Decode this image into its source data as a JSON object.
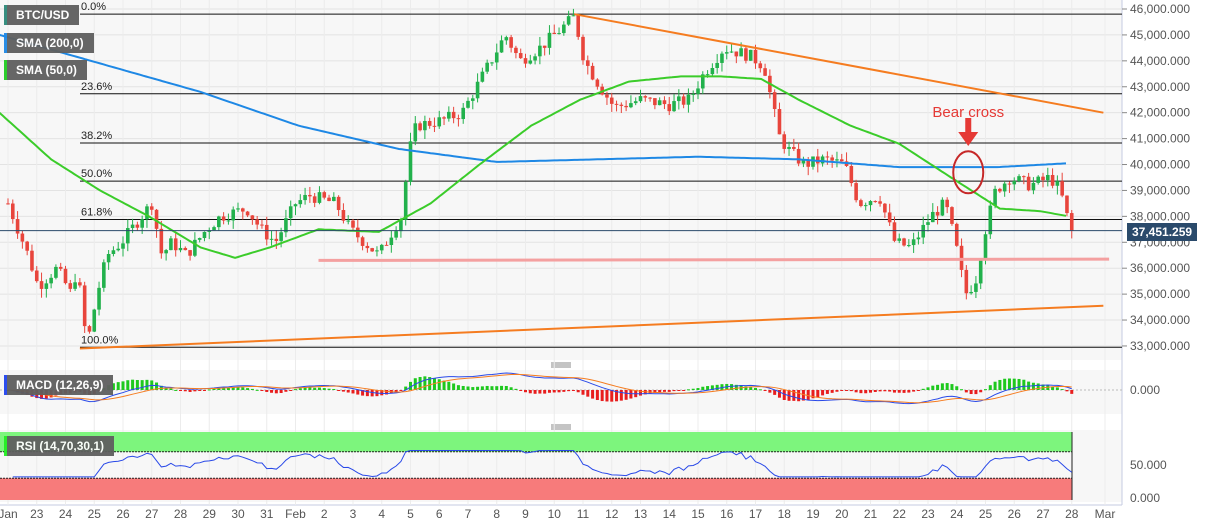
{
  "chart_data": {
    "type": "candlestick",
    "symbol": "BTC/USD",
    "indicators": {
      "sma200": "SMA (200,0)",
      "sma50": "SMA (50,0)",
      "macd": "MACD (12,26,9)",
      "rsi": "RSI (14,70,30,1)"
    },
    "last_price": "37,451.259",
    "ylim": [
      32600,
      46300
    ],
    "y_ticks": [
      "46,000.000",
      "45,000.000",
      "44,000.000",
      "43,000.000",
      "42,000.000",
      "41,000.000",
      "40,000.000",
      "39,000.000",
      "38,000.000",
      "37,000.000",
      "36,000.000",
      "35,000.000",
      "34,000.000",
      "33,000.000"
    ],
    "y_tick_values": [
      46000,
      45000,
      44000,
      43000,
      42000,
      41000,
      40000,
      39000,
      38000,
      37000,
      36000,
      35000,
      34000,
      33000
    ],
    "x_labels": [
      "Jan",
      "23",
      "24",
      "25",
      "26",
      "27",
      "28",
      "29",
      "30",
      "31",
      "Feb",
      "2",
      "3",
      "4",
      "5",
      "6",
      "7",
      "8",
      "9",
      "10",
      "11",
      "12",
      "13",
      "14",
      "15",
      "16",
      "17",
      "18",
      "19",
      "20",
      "21",
      "22",
      "23",
      "24",
      "25",
      "26",
      "27",
      "28",
      "Mar"
    ],
    "fib_levels": [
      {
        "label": "0.0%",
        "price": 45800
      },
      {
        "label": "23.6%",
        "price": 42730
      },
      {
        "label": "38.2%",
        "price": 40830
      },
      {
        "label": "50.0%",
        "price": 39360
      },
      {
        "label": "61.8%",
        "price": 37880
      },
      {
        "label": "100.0%",
        "price": 32950
      }
    ],
    "price_path_day_price": [
      [
        0,
        38500
      ],
      [
        0.7,
        36500
      ],
      [
        1.05,
        35300
      ],
      [
        1.7,
        36000
      ],
      [
        2.2,
        35000
      ],
      [
        2.4,
        36000
      ],
      [
        2.75,
        33000
      ],
      [
        3.1,
        35000
      ],
      [
        3.45,
        36500
      ],
      [
        3.95,
        37000
      ],
      [
        4.5,
        37800
      ],
      [
        5.0,
        38500
      ],
      [
        5.35,
        36500
      ],
      [
        5.7,
        37000
      ],
      [
        6.2,
        36500
      ],
      [
        6.9,
        37500
      ],
      [
        7.4,
        38000
      ],
      [
        8.3,
        38300
      ],
      [
        8.8,
        37500
      ],
      [
        9.3,
        37000
      ],
      [
        10.0,
        38500
      ],
      [
        10.5,
        38800
      ],
      [
        11.4,
        38500
      ],
      [
        11.9,
        37500
      ],
      [
        12.4,
        37000
      ],
      [
        12.9,
        36500
      ],
      [
        13.4,
        37500
      ],
      [
        13.7,
        38000
      ],
      [
        13.95,
        40500
      ],
      [
        14.2,
        41500
      ],
      [
        15.1,
        41700
      ],
      [
        15.8,
        42000
      ],
      [
        16.3,
        43000
      ],
      [
        16.8,
        44000
      ],
      [
        17.3,
        45000
      ],
      [
        17.8,
        44000
      ],
      [
        18.5,
        44500
      ],
      [
        19.5,
        45500
      ],
      [
        19.7,
        45700
      ],
      [
        20.05,
        44000
      ],
      [
        20.6,
        43000
      ],
      [
        21.1,
        42200
      ],
      [
        22.0,
        42500
      ],
      [
        23.0,
        42300
      ],
      [
        23.7,
        42500
      ],
      [
        24.2,
        43500
      ],
      [
        24.9,
        44500
      ],
      [
        25.8,
        44200
      ],
      [
        26.3,
        43800
      ],
      [
        26.55,
        42500
      ],
      [
        26.85,
        41000
      ],
      [
        27.2,
        40500
      ],
      [
        27.7,
        40000
      ],
      [
        28.4,
        40200
      ],
      [
        29.1,
        40000
      ],
      [
        29.6,
        38500
      ],
      [
        30.3,
        38800
      ],
      [
        30.85,
        37000
      ],
      [
        31.4,
        36800
      ],
      [
        32.1,
        38000
      ],
      [
        32.6,
        38500
      ],
      [
        32.95,
        37000
      ],
      [
        33.3,
        35000
      ],
      [
        33.65,
        35500
      ],
      [
        34.0,
        37500
      ],
      [
        34.35,
        39000
      ],
      [
        34.85,
        39500
      ],
      [
        35.55,
        39200
      ],
      [
        36.25,
        39500
      ],
      [
        36.6,
        39000
      ],
      [
        36.88,
        37800
      ],
      [
        37.0,
        37450
      ]
    ],
    "sma200_day_price": [
      [
        -0.3,
        45000
      ],
      [
        6.7,
        42800
      ],
      [
        10.1,
        41500
      ],
      [
        13.6,
        40600
      ],
      [
        17.0,
        40100
      ],
      [
        20.5,
        40200
      ],
      [
        24.0,
        40300
      ],
      [
        27.5,
        40200
      ],
      [
        31.0,
        39900
      ],
      [
        34.4,
        39900
      ],
      [
        36.9,
        40050
      ]
    ],
    "sma50_day_price": [
      [
        -0.3,
        42000
      ],
      [
        1.5,
        40200
      ],
      [
        3.2,
        39000
      ],
      [
        4.9,
        38000
      ],
      [
        6.7,
        36800
      ],
      [
        7.9,
        36400
      ],
      [
        9.1,
        36800
      ],
      [
        10.8,
        37500
      ],
      [
        12.9,
        37400
      ],
      [
        14.7,
        38500
      ],
      [
        16.4,
        40000
      ],
      [
        18.2,
        41500
      ],
      [
        19.9,
        42500
      ],
      [
        21.6,
        43200
      ],
      [
        23.4,
        43400
      ],
      [
        24.8,
        43400
      ],
      [
        26.2,
        43300
      ],
      [
        27.5,
        42500
      ],
      [
        29.3,
        41500
      ],
      [
        31.0,
        40800
      ],
      [
        32.8,
        39500
      ],
      [
        34.5,
        38300
      ],
      [
        35.9,
        38200
      ],
      [
        36.9,
        38000
      ]
    ],
    "trendlines": [
      {
        "name": "upper",
        "from": [
          19.7,
          45800
        ],
        "to": [
          38.1,
          42000
        ]
      },
      {
        "name": "lower",
        "from": [
          2.5,
          32900
        ],
        "to": [
          38.1,
          34550
        ]
      },
      {
        "name": "support",
        "from": [
          10.8,
          36300
        ],
        "to": [
          38.3,
          36350
        ]
      }
    ],
    "annotation": {
      "text": "Bear cross",
      "day": 33.4,
      "price": 39700
    },
    "macd_ticks": [
      "0.000"
    ],
    "rsi_ticks": [
      "50.000",
      "0.000"
    ],
    "rsi_levels": [
      70,
      30
    ]
  },
  "colors": {
    "up": "#22b14c",
    "down": "#e8453c",
    "sma200": "#1e88e5",
    "sma50": "#3bcc2a",
    "trend": "#f57c20",
    "support": "#f4a0a0",
    "annot": "#e53935",
    "macd": "#2949e8",
    "signal": "#f57c20"
  }
}
